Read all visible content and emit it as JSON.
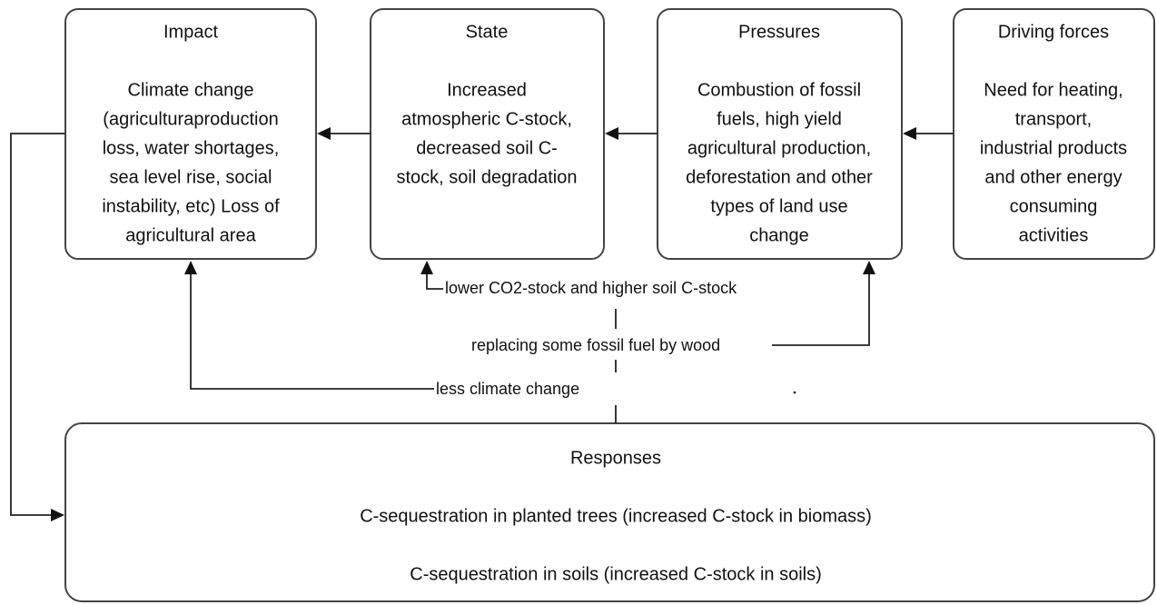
{
  "nodes": [
    {
      "title": "Impact",
      "lines": [
        "Climate change",
        "(agriculturaproduction",
        "loss, water shortages,",
        "sea level rise, social",
        "instability, etc) Loss of",
        "agricultural area"
      ]
    },
    {
      "title": "State",
      "lines": [
        "Increased",
        "atmospheric C-stock,",
        "decreased soil C-",
        "stock, soil degradation"
      ]
    },
    {
      "title": "Pressures",
      "lines": [
        "Combustion of fossil",
        "fuels, high yield",
        "agricultural production,",
        "deforestation and other",
        "types of land use",
        "change"
      ]
    },
    {
      "title": "Driving forces",
      "lines": [
        "Need for heating,",
        "transport,",
        "industrial products",
        "and other energy",
        "consuming",
        "activities"
      ]
    },
    {
      "title": "Responses",
      "lines": [
        "C-sequestration in planted trees (increased C-stock in biomass)",
        "C-sequestration in soils (increased C-stock in soils)"
      ]
    }
  ],
  "edge_labels": [
    "lower CO2-stock and higher soil C-stock",
    "replacing some fossil fuel by wood",
    "less climate change"
  ]
}
